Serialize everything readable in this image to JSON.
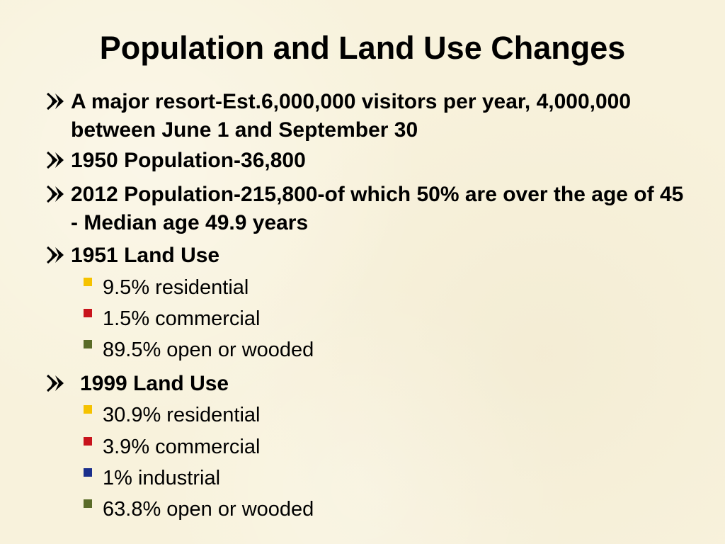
{
  "slide": {
    "title": "Population and Land Use Changes",
    "bullets": [
      {
        "text": "A major resort-Est.6,000,000 visitors per year, 4,000,000 between June 1 and September 30",
        "marker": "arrow-icon"
      },
      {
        "text": "1950 Population-36,800",
        "marker": "arrow-icon"
      },
      {
        "text": "2012 Population-215,800-of which 50% are over the age of 45 - Median age 49.9 years",
        "marker": "arrow-icon"
      },
      {
        "text": "1951 Land Use",
        "marker": "arrow-icon"
      },
      {
        "text": "1999 Land Use",
        "marker": "arrow-icon"
      }
    ],
    "land_use_1951": [
      {
        "text": "9.5% residential",
        "color": "#f5c200"
      },
      {
        "text": "1.5% commercial",
        "color": "#c8141c"
      },
      {
        "text": "89.5% open or wooded",
        "color": "#5a6b28"
      }
    ],
    "land_use_1999": [
      {
        "text": "30.9% residential",
        "color": "#f5c200"
      },
      {
        "text": "3.9% commercial",
        "color": "#c8141c"
      },
      {
        "text": "1% industrial",
        "color": "#1a2f8c"
      },
      {
        "text": "63.8% open or wooded",
        "color": "#5a6b28"
      }
    ]
  }
}
